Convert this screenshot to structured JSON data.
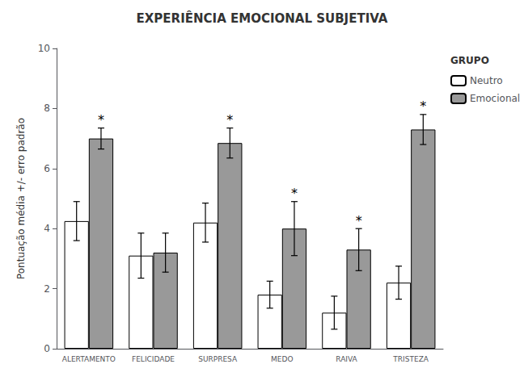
{
  "chart_data": {
    "type": "bar",
    "title": "EXPERIÊNCIA EMOCIONAL SUBJETIVA",
    "ylabel": "Pontuação média +/- erro padrão",
    "categories": [
      "ALERTAMENTO",
      "FELICIDADE",
      "SURPRESA",
      "MEDO",
      "RAIVA",
      "TRISTEZA"
    ],
    "series": [
      {
        "name": "Neutro",
        "color": "#ffffff",
        "values": [
          4.25,
          3.1,
          4.2,
          1.8,
          1.2,
          2.2
        ],
        "errors": [
          0.65,
          0.75,
          0.65,
          0.45,
          0.55,
          0.55
        ]
      },
      {
        "name": "Emocional",
        "color": "#999999",
        "values": [
          7.0,
          3.2,
          6.85,
          4.0,
          3.3,
          7.3
        ],
        "errors": [
          0.35,
          0.65,
          0.5,
          0.9,
          0.7,
          0.5
        ]
      }
    ],
    "ylim": [
      0,
      10
    ],
    "yticks": [
      0,
      2,
      4,
      6,
      8,
      10
    ],
    "grid": false,
    "legend": "upper right",
    "legend_title": "GRUPO",
    "annotations": [
      {
        "text": "*",
        "series": "Emocional",
        "category": "ALERTAMENTO"
      },
      {
        "text": "*",
        "series": "Emocional",
        "category": "SURPRESA"
      },
      {
        "text": "*",
        "series": "Emocional",
        "category": "MEDO"
      },
      {
        "text": "*",
        "series": "Emocional",
        "category": "RAIVA"
      },
      {
        "text": "*",
        "series": "Emocional",
        "category": "TRISTEZA"
      }
    ]
  }
}
